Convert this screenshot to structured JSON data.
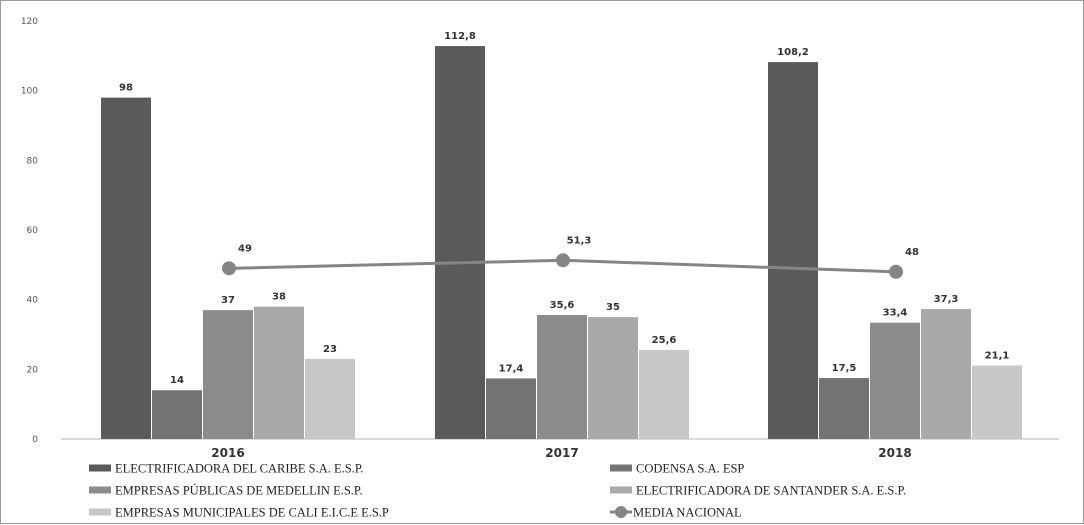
{
  "chart_data": {
    "type": "bar",
    "categories": [
      "2016",
      "2017",
      "2018"
    ],
    "ylim": [
      0,
      120
    ],
    "yticks": [
      0,
      20,
      40,
      60,
      80,
      100,
      120
    ],
    "grid": false,
    "legend_placement": "bottom",
    "series": [
      {
        "name": "ELECTRIFICADORA DEL CARIBE S.A. E.S.P.",
        "values": [
          98,
          112.8,
          108.2
        ],
        "labels": [
          "98",
          "112,8",
          "108,2"
        ],
        "color": "#5a5a5a"
      },
      {
        "name": "CODENSA S.A. ESP",
        "values": [
          14,
          17.4,
          17.5
        ],
        "labels": [
          "14",
          "17,4",
          "17,5"
        ],
        "color": "#747474"
      },
      {
        "name": "EMPRESAS PÚBLICAS DE MEDELLIN E.S.P.",
        "values": [
          37,
          35.6,
          33.4
        ],
        "labels": [
          "37",
          "35,6",
          "33,4"
        ],
        "color": "#8c8c8c"
      },
      {
        "name": "ELECTRIFICADORA DE SANTANDER S.A. E.S.P.",
        "values": [
          38,
          35,
          37.3
        ],
        "labels": [
          "38",
          "35",
          "37,3"
        ],
        "color": "#a9a9a9"
      },
      {
        "name": "EMPRESAS MUNICIPALES DE CALI  E.I.C.E  E.S.P",
        "values": [
          23,
          25.6,
          21.1
        ],
        "labels": [
          "23",
          "25,6",
          "21,1"
        ],
        "color": "#c8c8c8"
      }
    ],
    "line_series": {
      "name": "MEDIA NACIONAL",
      "type": "line",
      "values": [
        49,
        51.3,
        48
      ],
      "labels": [
        "49",
        "51,3",
        "48"
      ],
      "color": "#858585"
    }
  }
}
